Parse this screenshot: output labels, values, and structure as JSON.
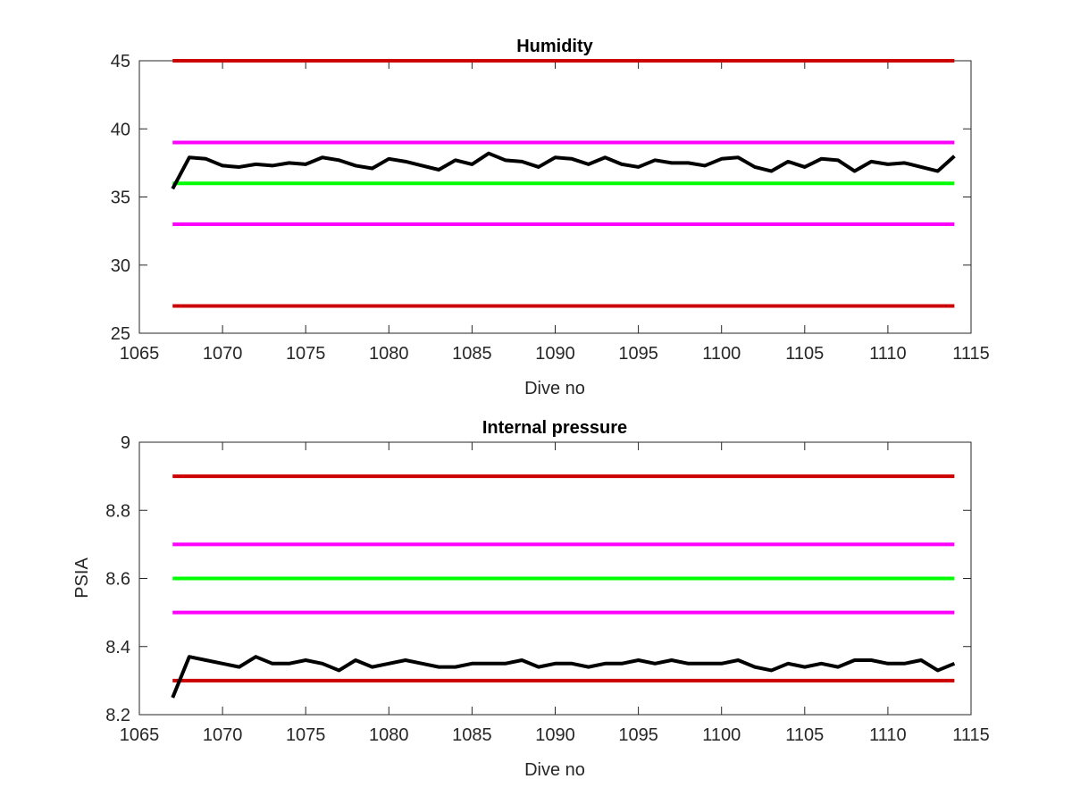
{
  "chart_data": [
    {
      "type": "line",
      "title": "Humidity",
      "xlabel": "Dive no",
      "ylabel": "",
      "xlim": [
        1065,
        1115
      ],
      "ylim": [
        25,
        45
      ],
      "xticks": [
        1065,
        1070,
        1075,
        1080,
        1085,
        1090,
        1095,
        1100,
        1105,
        1110,
        1115
      ],
      "yticks": [
        25,
        30,
        35,
        40,
        45
      ],
      "grid": false,
      "legend": "none",
      "reference_lines": [
        {
          "y": 45,
          "color": "#cc0000",
          "x_range": [
            1067,
            1114
          ]
        },
        {
          "y": 39,
          "color": "#ff00ff",
          "x_range": [
            1067,
            1114
          ]
        },
        {
          "y": 36,
          "color": "#00ff00",
          "x_range": [
            1067,
            1114
          ]
        },
        {
          "y": 33,
          "color": "#ff00ff",
          "x_range": [
            1067,
            1114
          ]
        },
        {
          "y": 27,
          "color": "#cc0000",
          "x_range": [
            1067,
            1114
          ]
        }
      ],
      "series": [
        {
          "color": "#000000",
          "x": [
            1067,
            1068,
            1069,
            1070,
            1071,
            1072,
            1073,
            1074,
            1075,
            1076,
            1077,
            1078,
            1079,
            1080,
            1081,
            1082,
            1083,
            1084,
            1085,
            1086,
            1087,
            1088,
            1089,
            1090,
            1091,
            1092,
            1093,
            1094,
            1095,
            1096,
            1097,
            1098,
            1099,
            1100,
            1101,
            1102,
            1103,
            1104,
            1105,
            1106,
            1107,
            1108,
            1109,
            1110,
            1111,
            1112,
            1113,
            1114
          ],
          "y": [
            35.6,
            37.9,
            37.8,
            37.3,
            37.2,
            37.4,
            37.3,
            37.5,
            37.4,
            37.9,
            37.7,
            37.3,
            37.1,
            37.8,
            37.6,
            37.3,
            37.0,
            37.7,
            37.4,
            38.2,
            37.7,
            37.6,
            37.2,
            37.9,
            37.8,
            37.4,
            37.9,
            37.4,
            37.2,
            37.7,
            37.5,
            37.5,
            37.3,
            37.8,
            37.9,
            37.2,
            36.9,
            37.6,
            37.2,
            37.8,
            37.7,
            36.9,
            37.6,
            37.4,
            37.5,
            37.2,
            36.9,
            38.0
          ]
        }
      ]
    },
    {
      "type": "line",
      "title": "Internal pressure",
      "xlabel": "Dive no",
      "ylabel": "PSIA",
      "xlim": [
        1065,
        1115
      ],
      "ylim": [
        8.2,
        9
      ],
      "xticks": [
        1065,
        1070,
        1075,
        1080,
        1085,
        1090,
        1095,
        1100,
        1105,
        1110,
        1115
      ],
      "yticks": [
        8.2,
        8.4,
        8.6,
        8.8,
        9
      ],
      "grid": false,
      "legend": "none",
      "reference_lines": [
        {
          "y": 8.9,
          "color": "#cc0000",
          "x_range": [
            1067,
            1114
          ]
        },
        {
          "y": 8.7,
          "color": "#ff00ff",
          "x_range": [
            1067,
            1114
          ]
        },
        {
          "y": 8.6,
          "color": "#00ff00",
          "x_range": [
            1067,
            1114
          ]
        },
        {
          "y": 8.5,
          "color": "#ff00ff",
          "x_range": [
            1067,
            1114
          ]
        },
        {
          "y": 8.3,
          "color": "#cc0000",
          "x_range": [
            1067,
            1114
          ]
        }
      ],
      "series": [
        {
          "color": "#000000",
          "x": [
            1067,
            1068,
            1069,
            1070,
            1071,
            1072,
            1073,
            1074,
            1075,
            1076,
            1077,
            1078,
            1079,
            1080,
            1081,
            1082,
            1083,
            1084,
            1085,
            1086,
            1087,
            1088,
            1089,
            1090,
            1091,
            1092,
            1093,
            1094,
            1095,
            1096,
            1097,
            1098,
            1099,
            1100,
            1101,
            1102,
            1103,
            1104,
            1105,
            1106,
            1107,
            1108,
            1109,
            1110,
            1111,
            1112,
            1113,
            1114
          ],
          "y": [
            8.25,
            8.37,
            8.36,
            8.35,
            8.34,
            8.37,
            8.35,
            8.35,
            8.36,
            8.35,
            8.33,
            8.36,
            8.34,
            8.35,
            8.36,
            8.35,
            8.34,
            8.34,
            8.35,
            8.35,
            8.35,
            8.36,
            8.34,
            8.35,
            8.35,
            8.34,
            8.35,
            8.35,
            8.36,
            8.35,
            8.36,
            8.35,
            8.35,
            8.35,
            8.36,
            8.34,
            8.33,
            8.35,
            8.34,
            8.35,
            8.34,
            8.36,
            8.36,
            8.35,
            8.35,
            8.36,
            8.33,
            8.35
          ]
        }
      ]
    }
  ]
}
